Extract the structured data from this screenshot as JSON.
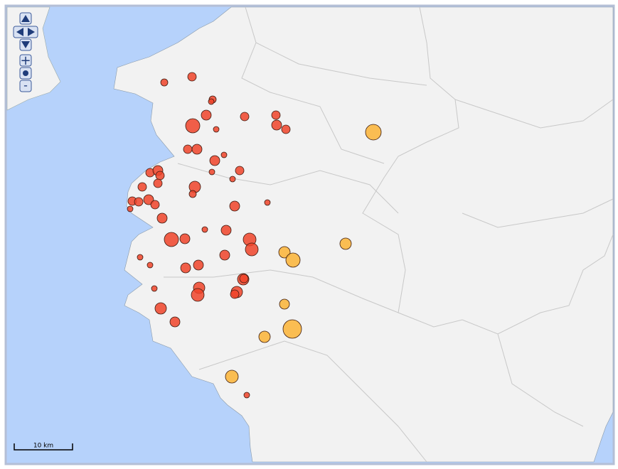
{
  "controls": {
    "zoom_in": "+",
    "zoom_out": "-"
  },
  "scale_bar": {
    "label": "10 km"
  }
}
